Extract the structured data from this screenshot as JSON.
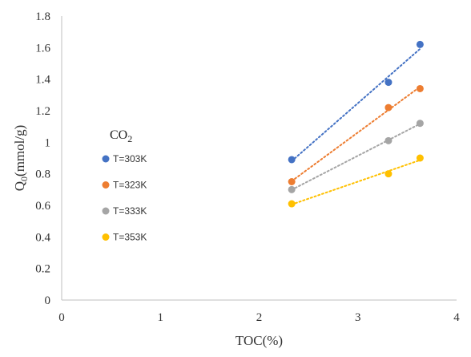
{
  "chart_data": {
    "type": "scatter",
    "title": "",
    "xlabel": "TOC(%)",
    "ylabel_main": "Q",
    "ylabel_sub": "0",
    "ylabel_unit": "(mmol/g)",
    "xlim": [
      0,
      4
    ],
    "ylim": [
      0,
      1.8
    ],
    "xticks": [
      "0",
      "1",
      "2",
      "3",
      "4"
    ],
    "yticks": [
      "0",
      "0.2",
      "0.4",
      "0.6",
      "0.8",
      "1",
      "1.2",
      "1.4",
      "1.6",
      "1.8"
    ],
    "grid": false,
    "trendlines": "linear, dotted",
    "legend": {
      "position": "left-middle",
      "title_main": "CO",
      "title_sub": "2"
    },
    "series": [
      {
        "name": "T=303K",
        "color": "#4472C4",
        "x": [
          2.33,
          3.31,
          3.63
        ],
        "y": [
          0.89,
          1.38,
          1.62
        ]
      },
      {
        "name": "T=323K",
        "color": "#ED7D31",
        "x": [
          2.33,
          3.31,
          3.63
        ],
        "y": [
          0.75,
          1.22,
          1.34
        ]
      },
      {
        "name": "T=333K",
        "color": "#A5A5A5",
        "x": [
          2.33,
          3.31,
          3.63
        ],
        "y": [
          0.7,
          1.01,
          1.12
        ]
      },
      {
        "name": "T=353K",
        "color": "#FFC000",
        "x": [
          2.33,
          3.31,
          3.63
        ],
        "y": [
          0.61,
          0.8,
          0.9
        ]
      }
    ]
  }
}
